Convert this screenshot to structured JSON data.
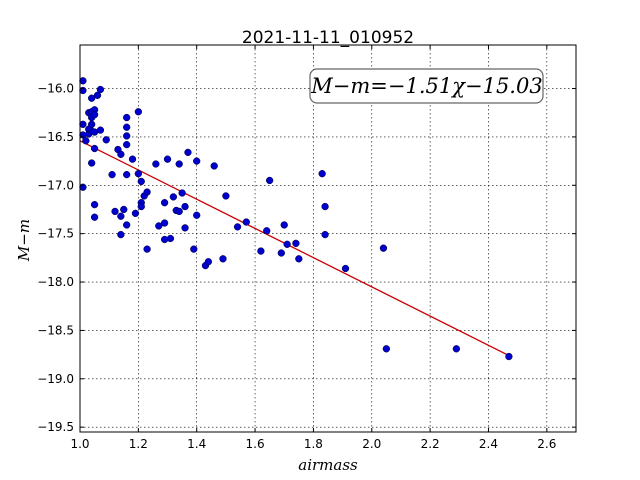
{
  "chart_data": {
    "type": "scatter",
    "title": "2021-11-11_010952",
    "xlabel": "airmass",
    "ylabel": "M−m",
    "xlim": [
      1.0,
      2.7
    ],
    "ylim": [
      -19.55,
      -15.55
    ],
    "x_ticks": [
      "1.0",
      "1.2",
      "1.4",
      "1.6",
      "1.8",
      "2.0",
      "2.2",
      "2.4",
      "2.6"
    ],
    "y_ticks": [
      "−16.0",
      "−16.5",
      "−17.0",
      "−17.5",
      "−18.0",
      "−18.5",
      "−19.0",
      "−19.5"
    ],
    "grid": true,
    "annotation": "M−m=−1.51χ−15.03",
    "fit": {
      "slope": -1.51,
      "intercept": -15.03,
      "x_range": [
        1.0,
        2.47
      ],
      "color": "#cc0000"
    },
    "point_color": "#0000cc",
    "points": [
      {
        "x": 1.01,
        "y": -15.92
      },
      {
        "x": 1.01,
        "y": -16.02
      },
      {
        "x": 1.01,
        "y": -16.37
      },
      {
        "x": 1.01,
        "y": -16.48
      },
      {
        "x": 1.02,
        "y": -16.54
      },
      {
        "x": 1.01,
        "y": -17.02
      },
      {
        "x": 1.03,
        "y": -16.25
      },
      {
        "x": 1.03,
        "y": -16.42
      },
      {
        "x": 1.03,
        "y": -16.47
      },
      {
        "x": 1.04,
        "y": -16.1
      },
      {
        "x": 1.04,
        "y": -16.24
      },
      {
        "x": 1.04,
        "y": -16.3
      },
      {
        "x": 1.04,
        "y": -16.37
      },
      {
        "x": 1.04,
        "y": -16.44
      },
      {
        "x": 1.05,
        "y": -16.22
      },
      {
        "x": 1.05,
        "y": -16.27
      },
      {
        "x": 1.05,
        "y": -16.45
      },
      {
        "x": 1.05,
        "y": -16.62
      },
      {
        "x": 1.04,
        "y": -16.77
      },
      {
        "x": 1.05,
        "y": -17.2
      },
      {
        "x": 1.05,
        "y": -17.33
      },
      {
        "x": 1.06,
        "y": -16.07
      },
      {
        "x": 1.07,
        "y": -16.01
      },
      {
        "x": 1.07,
        "y": -16.43
      },
      {
        "x": 1.09,
        "y": -16.53
      },
      {
        "x": 1.11,
        "y": -16.89
      },
      {
        "x": 1.12,
        "y": -17.27
      },
      {
        "x": 1.13,
        "y": -16.63
      },
      {
        "x": 1.14,
        "y": -16.68
      },
      {
        "x": 1.14,
        "y": -17.32
      },
      {
        "x": 1.14,
        "y": -17.51
      },
      {
        "x": 1.15,
        "y": -17.25
      },
      {
        "x": 1.16,
        "y": -16.3
      },
      {
        "x": 1.16,
        "y": -16.4
      },
      {
        "x": 1.16,
        "y": -16.49
      },
      {
        "x": 1.16,
        "y": -16.58
      },
      {
        "x": 1.16,
        "y": -16.89
      },
      {
        "x": 1.16,
        "y": -17.41
      },
      {
        "x": 1.18,
        "y": -16.73
      },
      {
        "x": 1.19,
        "y": -17.29
      },
      {
        "x": 1.2,
        "y": -16.24
      },
      {
        "x": 1.2,
        "y": -16.88
      },
      {
        "x": 1.21,
        "y": -16.96
      },
      {
        "x": 1.21,
        "y": -17.18
      },
      {
        "x": 1.22,
        "y": -17.11
      },
      {
        "x": 1.21,
        "y": -17.22
      },
      {
        "x": 1.23,
        "y": -17.07
      },
      {
        "x": 1.23,
        "y": -17.66
      },
      {
        "x": 1.26,
        "y": -16.78
      },
      {
        "x": 1.27,
        "y": -17.42
      },
      {
        "x": 1.29,
        "y": -17.18
      },
      {
        "x": 1.29,
        "y": -17.39
      },
      {
        "x": 1.29,
        "y": -17.56
      },
      {
        "x": 1.3,
        "y": -16.73
      },
      {
        "x": 1.31,
        "y": -17.55
      },
      {
        "x": 1.32,
        "y": -17.12
      },
      {
        "x": 1.33,
        "y": -17.26
      },
      {
        "x": 1.34,
        "y": -16.78
      },
      {
        "x": 1.34,
        "y": -17.27
      },
      {
        "x": 1.35,
        "y": -17.08
      },
      {
        "x": 1.36,
        "y": -17.22
      },
      {
        "x": 1.36,
        "y": -17.44
      },
      {
        "x": 1.37,
        "y": -16.66
      },
      {
        "x": 1.39,
        "y": -17.66
      },
      {
        "x": 1.4,
        "y": -16.75
      },
      {
        "x": 1.4,
        "y": -17.31
      },
      {
        "x": 1.43,
        "y": -17.83
      },
      {
        "x": 1.44,
        "y": -17.79
      },
      {
        "x": 1.46,
        "y": -16.8
      },
      {
        "x": 1.49,
        "y": -17.76
      },
      {
        "x": 1.5,
        "y": -17.11
      },
      {
        "x": 1.54,
        "y": -17.43
      },
      {
        "x": 1.57,
        "y": -17.38
      },
      {
        "x": 1.62,
        "y": -17.68
      },
      {
        "x": 1.64,
        "y": -17.47
      },
      {
        "x": 1.65,
        "y": -16.95
      },
      {
        "x": 1.69,
        "y": -17.7
      },
      {
        "x": 1.7,
        "y": -17.41
      },
      {
        "x": 1.71,
        "y": -17.61
      },
      {
        "x": 1.74,
        "y": -17.6
      },
      {
        "x": 1.75,
        "y": -17.76
      },
      {
        "x": 1.83,
        "y": -16.88
      },
      {
        "x": 1.84,
        "y": -17.22
      },
      {
        "x": 1.84,
        "y": -17.51
      },
      {
        "x": 1.91,
        "y": -17.86
      },
      {
        "x": 2.04,
        "y": -17.65
      },
      {
        "x": 2.05,
        "y": -18.69
      },
      {
        "x": 2.29,
        "y": -18.69
      },
      {
        "x": 2.47,
        "y": -18.77
      }
    ]
  }
}
